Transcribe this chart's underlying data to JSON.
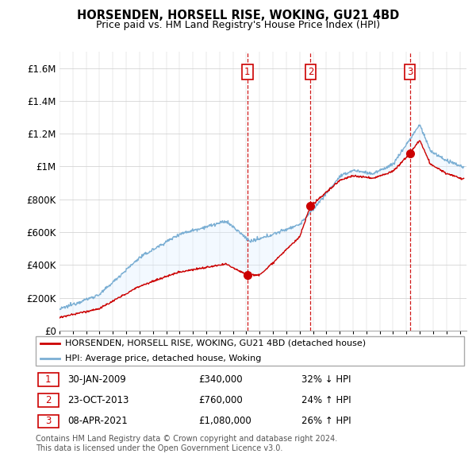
{
  "title": "HORSENDEN, HORSELL RISE, WOKING, GU21 4BD",
  "subtitle": "Price paid vs. HM Land Registry's House Price Index (HPI)",
  "legend_label_red": "HORSENDEN, HORSELL RISE, WOKING, GU21 4BD (detached house)",
  "legend_label_blue": "HPI: Average price, detached house, Woking",
  "footer1": "Contains HM Land Registry data © Crown copyright and database right 2024.",
  "footer2": "This data is licensed under the Open Government Licence v3.0.",
  "transactions": [
    {
      "num": 1,
      "date": "30-JAN-2009",
      "date_val": 2009.08,
      "price": 340000,
      "hpi_diff": "32% ↓ HPI"
    },
    {
      "num": 2,
      "date": "23-OCT-2013",
      "date_val": 2013.81,
      "price": 760000,
      "hpi_diff": "24% ↑ HPI"
    },
    {
      "num": 3,
      "date": "08-APR-2021",
      "date_val": 2021.27,
      "price": 1080000,
      "hpi_diff": "26% ↑ HPI"
    }
  ],
  "red_color": "#cc0000",
  "blue_color": "#7bafd4",
  "vline_color": "#cc0000",
  "shade_color": "#ddeeff",
  "ylim": [
    0,
    1700000
  ],
  "yticks": [
    0,
    200000,
    400000,
    600000,
    800000,
    1000000,
    1200000,
    1400000,
    1600000
  ],
  "ytick_labels": [
    "£0",
    "£200K",
    "£400K",
    "£600K",
    "£800K",
    "£1M",
    "£1.2M",
    "£1.4M",
    "£1.6M"
  ],
  "fig_width": 6.0,
  "fig_height": 5.9,
  "dpi": 100
}
